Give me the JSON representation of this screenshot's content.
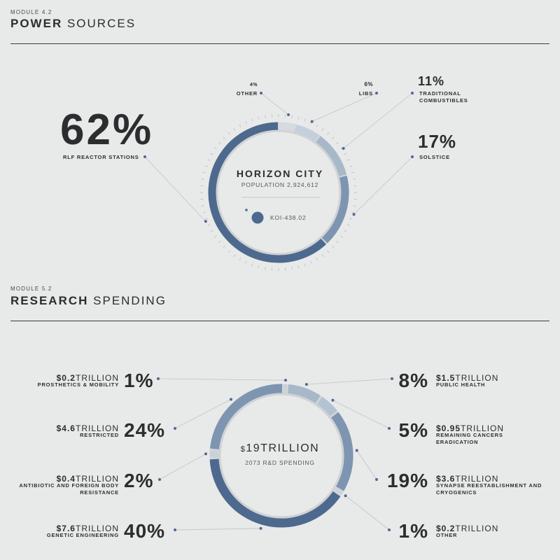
{
  "power": {
    "module": "MODULE 4.2",
    "title_bold": "POWER",
    "title_rest": "SOURCES",
    "center_title": "HORIZON CITY",
    "center_sub": "POPULATION 2,924,612",
    "legend_label": "KOI-438.02"
  },
  "research": {
    "module": "MODULE 5.2",
    "title_bold": "RESEARCH",
    "title_rest": "SPENDING",
    "center_currency": "$",
    "center_value": "19TRILLION",
    "center_sub": "2073 R&D SPENDING"
  },
  "colors": {
    "dark": "#4d6a8e",
    "mid": "#7d95b0",
    "light": "#a7b8c9",
    "lighter": "#c3d0dc",
    "ring_bg": "#d4d6d8"
  },
  "chart_data": [
    {
      "type": "pie",
      "title": "POWER SOURCES",
      "slices": [
        {
          "label": "RLF REACTOR STATIONS",
          "value": 62,
          "pct": "62%"
        },
        {
          "label": "SOLSTICE",
          "value": 17,
          "pct": "17%"
        },
        {
          "label": "TRADITIONAL COMBUSTIBLES",
          "value": 11,
          "pct": "11%"
        },
        {
          "label": "LIBS",
          "value": 6,
          "pct": "6%"
        },
        {
          "label": "OTHER",
          "value": 4,
          "pct": "4%"
        }
      ]
    },
    {
      "type": "pie",
      "title": "RESEARCH SPENDING",
      "slices": [
        {
          "label": "PUBLIC HEALTH",
          "value": 8,
          "pct": "8%",
          "amount": "$1.5",
          "unit": "TRILLION"
        },
        {
          "label": "REMAINING CANCERS ERADICATION",
          "value": 5,
          "pct": "5%",
          "amount": "$0.95",
          "unit": "TRILLION"
        },
        {
          "label": "SYNAPSE REESTABLISHMENT AND CRYOGENICS",
          "value": 19,
          "pct": "19%",
          "amount": "$3.6",
          "unit": "TRILLION"
        },
        {
          "label": "OTHER",
          "value": 1,
          "pct": "1%",
          "amount": "$0.2",
          "unit": "TRILLION"
        },
        {
          "label": "GENETIC ENGINEERING",
          "value": 40,
          "pct": "40%",
          "amount": "$7.6",
          "unit": "TRILLION"
        },
        {
          "label": "ANTIBIOTIC AND FOREIGN BODY RESISTANCE",
          "value": 2,
          "pct": "2%",
          "amount": "$0.4",
          "unit": "TRILLION"
        },
        {
          "label": "RESTRICTED",
          "value": 24,
          "pct": "24%",
          "amount": "$4.6",
          "unit": "TRILLION"
        },
        {
          "label": "PROSTHETICS & MOBILITY",
          "value": 1,
          "pct": "1%",
          "amount": "$0.2",
          "unit": "TRILLION"
        }
      ]
    }
  ]
}
